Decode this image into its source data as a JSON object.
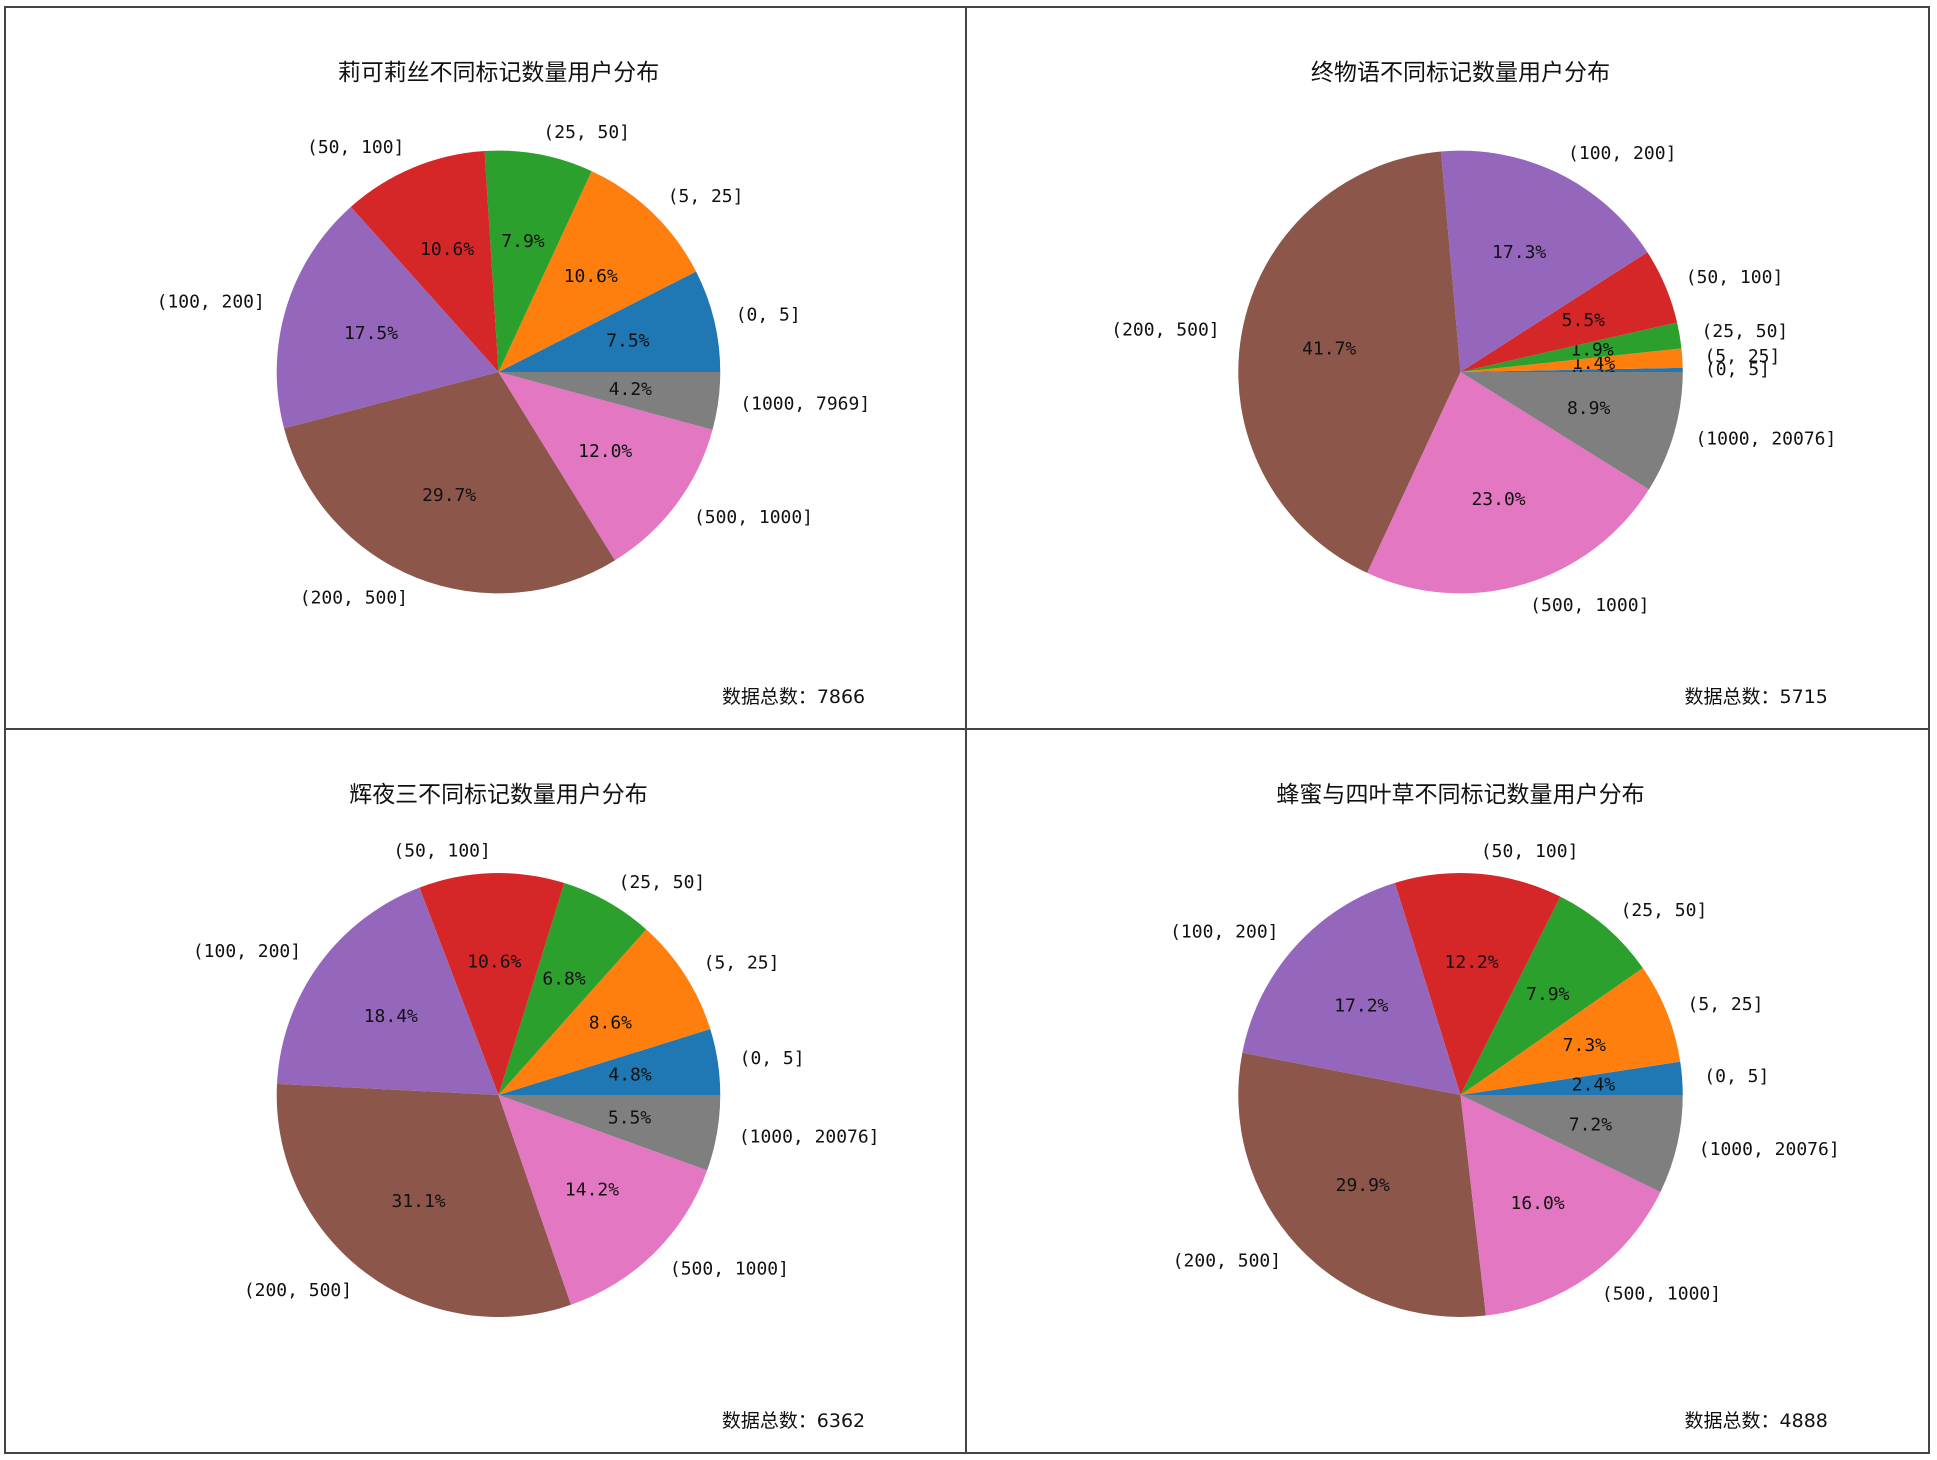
{
  "chart_data": [
    {
      "type": "pie",
      "title": "莉可莉丝不同标记数量用户分布",
      "total_text": "数据总数：7866",
      "categories": [
        "(0, 5]",
        "(5, 25]",
        "(25, 50]",
        "(50, 100]",
        "(100, 200]",
        "(200, 500]",
        "(500, 1000]",
        "(1000, 7969]"
      ],
      "values": [
        7.5,
        10.6,
        7.9,
        10.6,
        17.5,
        29.7,
        12.0,
        4.2
      ],
      "value_labels": [
        "7.5%",
        "10.6%",
        "7.9%",
        "10.6%",
        "17.5%",
        "29.7%",
        "12.0%",
        "4.2%"
      ]
    },
    {
      "type": "pie",
      "title": "终物语不同标记数量用户分布",
      "total_text": "数据总数：5715",
      "categories": [
        "(0, 5]",
        "(5, 25]",
        "(25, 50]",
        "(50, 100]",
        "(100, 200]",
        "(200, 500]",
        "(500, 1000]",
        "(1000, 20076]"
      ],
      "values": [
        0.3,
        1.4,
        1.9,
        5.5,
        17.3,
        41.7,
        23.0,
        8.9
      ],
      "value_labels": [
        "0.3%",
        "1.4%",
        "1.9%",
        "5.5%",
        "17.3%",
        "41.7%",
        "23.0%",
        "8.9%"
      ]
    },
    {
      "type": "pie",
      "title": "辉夜三不同标记数量用户分布",
      "total_text": "数据总数：6362",
      "categories": [
        "(0, 5]",
        "(5, 25]",
        "(25, 50]",
        "(50, 100]",
        "(100, 200]",
        "(200, 500]",
        "(500, 1000]",
        "(1000, 20076]"
      ],
      "values": [
        4.8,
        8.6,
        6.8,
        10.6,
        18.4,
        31.1,
        14.2,
        5.5
      ],
      "value_labels": [
        "4.8%",
        "8.6%",
        "6.8%",
        "10.6%",
        "18.4%",
        "31.1%",
        "14.2%",
        "5.5%"
      ]
    },
    {
      "type": "pie",
      "title": "蜂蜜与四叶草不同标记数量用户分布",
      "total_text": "数据总数：4888",
      "categories": [
        "(0, 5]",
        "(5, 25]",
        "(25, 50]",
        "(50, 100]",
        "(100, 200]",
        "(200, 500]",
        "(500, 1000]",
        "(1000, 20076]"
      ],
      "values": [
        2.4,
        7.3,
        7.9,
        12.2,
        17.2,
        29.9,
        16.0,
        7.2
      ],
      "value_labels": [
        "2.4%",
        "7.3%",
        "7.9%",
        "12.2%",
        "17.2%",
        "29.9%",
        "16.0%",
        "7.2%"
      ]
    }
  ],
  "colors": [
    "#1f77b4",
    "#ff7f0e",
    "#2ca02c",
    "#d62728",
    "#9467bd",
    "#8c564b",
    "#e377c2",
    "#7f7f7f"
  ]
}
